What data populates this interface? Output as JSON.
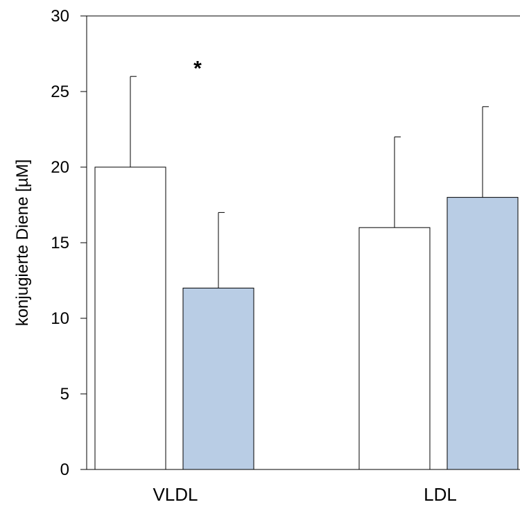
{
  "chart_data": {
    "type": "bar",
    "title": "",
    "xlabel": "",
    "ylabel": "konjugierte Diene [µM]",
    "ylim": [
      0,
      30
    ],
    "yticks": [
      0,
      5,
      10,
      15,
      20,
      25,
      30
    ],
    "categories": [
      "VLDL",
      "LDL"
    ],
    "series": [
      {
        "values": [
          20,
          16
        ],
        "errors": [
          6,
          6
        ],
        "color": "#ffffff"
      },
      {
        "values": [
          12,
          18
        ],
        "errors": [
          5,
          6
        ],
        "color": "#b9cde5"
      }
    ],
    "annotations": [
      {
        "text": "*",
        "category": "VLDL",
        "y": 27
      }
    ],
    "grid": false,
    "legend": "none"
  }
}
